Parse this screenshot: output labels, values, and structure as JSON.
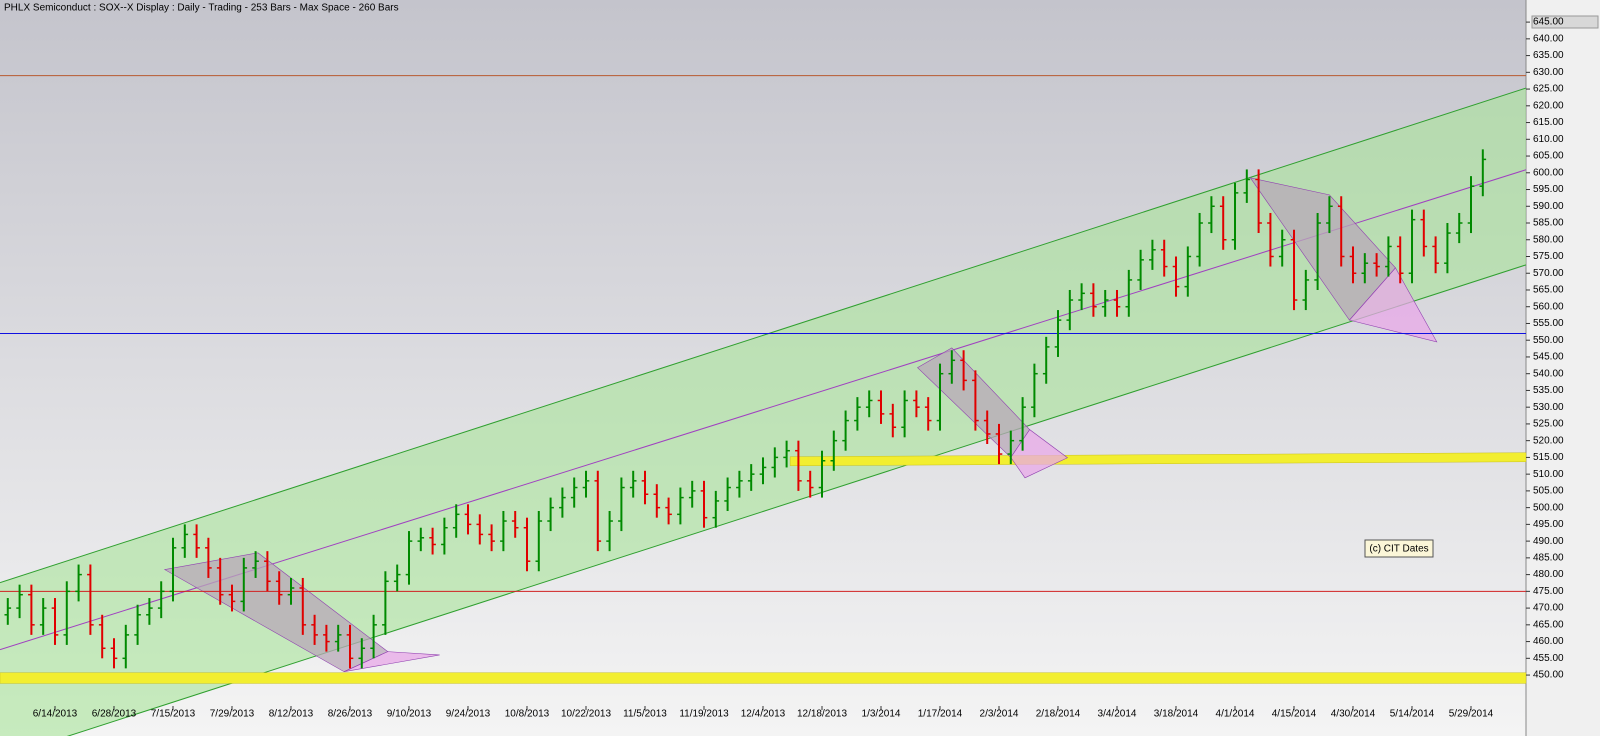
{
  "chart_data": {
    "type": "ohlc",
    "title": "PHLX Semiconduct : SOX--X Display :  Daily  - Trading - 253 Bars -  Max Space - 260 Bars",
    "annotation": "(c) CIT Dates",
    "categories": [
      null,
      null,
      null,
      null,
      "6/14/2013",
      null,
      null,
      null,
      null,
      "6/28/2013",
      null,
      null,
      null,
      null,
      "7/15/2013",
      null,
      null,
      null,
      null,
      "7/29/2013",
      null,
      null,
      null,
      null,
      "8/12/2013",
      null,
      null,
      null,
      null,
      "8/26/2013",
      null,
      null,
      null,
      null,
      "9/10/2013",
      null,
      null,
      null,
      null,
      "9/24/2013",
      null,
      null,
      null,
      null,
      "10/8/2013",
      null,
      null,
      null,
      null,
      "10/22/2013",
      null,
      null,
      null,
      null,
      "11/5/2013",
      null,
      null,
      null,
      null,
      "11/19/2013",
      null,
      null,
      null,
      null,
      "12/4/2013",
      null,
      null,
      null,
      null,
      "12/18/2013",
      null,
      null,
      null,
      null,
      "1/3/2014",
      null,
      null,
      null,
      null,
      "1/17/2014",
      null,
      null,
      null,
      null,
      "2/3/2014",
      null,
      null,
      null,
      null,
      "2/18/2014",
      null,
      null,
      null,
      null,
      "3/4/2014",
      null,
      null,
      null,
      null,
      "3/18/2014",
      null,
      null,
      null,
      null,
      "4/1/2014",
      null,
      null,
      null,
      null,
      "4/15/2014",
      null,
      null,
      null,
      null,
      "4/30/2014",
      null,
      null,
      null,
      null,
      "5/14/2014",
      null,
      null,
      null,
      null,
      "5/29/2014",
      null
    ],
    "open": [
      468,
      470,
      474,
      465,
      470,
      462,
      475,
      480,
      465,
      458,
      455,
      462,
      468,
      470,
      475,
      488,
      492,
      488,
      482,
      474,
      472,
      482,
      484,
      478,
      474,
      476,
      465,
      462,
      460,
      462,
      455,
      458,
      465,
      478,
      480,
      490,
      491,
      489,
      494,
      498,
      495,
      492,
      490,
      496,
      494,
      484,
      496,
      500,
      503,
      506,
      508,
      490,
      496,
      506,
      508,
      504,
      500,
      498,
      503,
      505,
      497,
      502,
      506,
      508,
      510,
      512,
      515,
      517,
      508,
      506,
      514,
      520,
      526,
      530,
      532,
      528,
      524,
      532,
      530,
      526,
      540,
      544,
      538,
      526,
      522,
      516,
      520,
      530,
      540,
      548,
      556,
      562,
      564,
      560,
      562,
      560,
      568,
      574,
      577,
      572,
      566,
      575,
      585,
      590,
      580,
      594,
      598,
      585,
      575,
      580,
      562,
      568,
      585,
      590,
      575,
      570,
      573,
      572,
      578,
      570,
      586,
      578,
      573,
      582,
      585,
      596
    ],
    "high": [
      473,
      477,
      477,
      473,
      473,
      478,
      483,
      483,
      468,
      461,
      465,
      471,
      473,
      478,
      491,
      495,
      495,
      491,
      485,
      477,
      485,
      487,
      487,
      481,
      479,
      479,
      468,
      465,
      465,
      465,
      461,
      468,
      481,
      483,
      493,
      494,
      494,
      497,
      501,
      501,
      498,
      495,
      499,
      499,
      497,
      499,
      503,
      506,
      509,
      511,
      511,
      499,
      509,
      511,
      511,
      507,
      503,
      506,
      508,
      508,
      505,
      509,
      511,
      513,
      515,
      518,
      520,
      520,
      511,
      517,
      523,
      529,
      533,
      535,
      535,
      531,
      535,
      535,
      533,
      543,
      547,
      547,
      541,
      529,
      525,
      523,
      533,
      543,
      551,
      559,
      565,
      567,
      567,
      565,
      565,
      571,
      577,
      580,
      580,
      575,
      578,
      588,
      593,
      593,
      597,
      601,
      601,
      588,
      583,
      583,
      571,
      588,
      593,
      593,
      578,
      576,
      576,
      581,
      581,
      589,
      589,
      581,
      585,
      588,
      599,
      607
    ],
    "low": [
      465,
      467,
      462,
      462,
      459,
      459,
      472,
      462,
      455,
      452,
      452,
      459,
      465,
      467,
      472,
      485,
      485,
      479,
      471,
      469,
      469,
      479,
      475,
      471,
      471,
      462,
      459,
      457,
      457,
      452,
      452,
      455,
      462,
      475,
      477,
      487,
      486,
      486,
      491,
      492,
      489,
      487,
      487,
      491,
      481,
      481,
      493,
      497,
      500,
      503,
      487,
      487,
      493,
      503,
      501,
      497,
      495,
      495,
      500,
      494,
      494,
      499,
      503,
      505,
      507,
      509,
      512,
      505,
      503,
      503,
      511,
      517,
      523,
      527,
      525,
      521,
      521,
      527,
      523,
      523,
      537,
      535,
      523,
      519,
      513,
      513,
      517,
      527,
      537,
      545,
      553,
      559,
      557,
      557,
      557,
      557,
      565,
      571,
      569,
      563,
      563,
      572,
      582,
      577,
      577,
      591,
      582,
      572,
      572,
      559,
      559,
      565,
      582,
      572,
      567,
      567,
      569,
      569,
      567,
      567,
      575,
      570,
      570,
      579,
      582,
      593
    ],
    "close": [
      470,
      474,
      465,
      470,
      462,
      475,
      480,
      465,
      458,
      455,
      462,
      468,
      470,
      475,
      488,
      492,
      488,
      482,
      474,
      472,
      482,
      484,
      478,
      474,
      476,
      465,
      462,
      460,
      462,
      455,
      458,
      465,
      478,
      480,
      490,
      491,
      489,
      494,
      498,
      495,
      492,
      490,
      496,
      494,
      484,
      496,
      500,
      503,
      506,
      508,
      490,
      496,
      506,
      508,
      504,
      500,
      498,
      503,
      505,
      497,
      502,
      506,
      508,
      510,
      512,
      515,
      517,
      508,
      506,
      514,
      520,
      526,
      530,
      532,
      528,
      524,
      532,
      530,
      526,
      540,
      544,
      538,
      526,
      522,
      516,
      520,
      530,
      540,
      548,
      556,
      562,
      564,
      560,
      562,
      560,
      568,
      574,
      577,
      572,
      566,
      575,
      585,
      590,
      580,
      594,
      598,
      585,
      575,
      580,
      562,
      568,
      585,
      590,
      575,
      570,
      573,
      572,
      578,
      570,
      586,
      578,
      573,
      582,
      585,
      596,
      604
    ],
    "up_color": "#008a00",
    "down_color": "#e00000",
    "xlim": [
      -0.66,
      128.66
    ],
    "ylim": [
      431.8,
      651.6
    ],
    "yticks": [
      {
        "value": 450,
        "label": "450.00"
      },
      {
        "value": 455,
        "label": "455.00"
      },
      {
        "value": 460,
        "label": "460.00"
      },
      {
        "value": 465,
        "label": "465.00"
      },
      {
        "value": 470,
        "label": "470.00"
      },
      {
        "value": 475,
        "label": "475.00"
      },
      {
        "value": 480,
        "label": "480.00"
      },
      {
        "value": 485,
        "label": "485.00"
      },
      {
        "value": 490,
        "label": "490.00"
      },
      {
        "value": 495,
        "label": "495.00"
      },
      {
        "value": 500,
        "label": "500.00"
      },
      {
        "value": 505,
        "label": "505.00"
      },
      {
        "value": 510,
        "label": "510.00"
      },
      {
        "value": 515,
        "label": "515.00"
      },
      {
        "value": 520,
        "label": "520.00"
      },
      {
        "value": 525,
        "label": "525.00"
      },
      {
        "value": 530,
        "label": "530.00"
      },
      {
        "value": 535,
        "label": "535.00"
      },
      {
        "value": 540,
        "label": "540.00"
      },
      {
        "value": 545,
        "label": "545.00"
      },
      {
        "value": 550,
        "label": "550.00"
      },
      {
        "value": 555,
        "label": "555.00"
      },
      {
        "value": 560,
        "label": "560.00"
      },
      {
        "value": 565,
        "label": "565.00"
      },
      {
        "value": 570,
        "label": "570.00"
      },
      {
        "value": 575,
        "label": "575.00"
      },
      {
        "value": 580,
        "label": "580.00"
      },
      {
        "value": 585,
        "label": "585.00"
      },
      {
        "value": 590,
        "label": "590.00"
      },
      {
        "value": 595,
        "label": "595.00"
      },
      {
        "value": 600,
        "label": "600.00"
      },
      {
        "value": 605,
        "label": "605.00"
      },
      {
        "value": 610,
        "label": "610.00"
      },
      {
        "value": 615,
        "label": "615.00"
      },
      {
        "value": 620,
        "label": "620.00"
      },
      {
        "value": 625,
        "label": "625.00"
      },
      {
        "value": 630,
        "label": "630.00"
      },
      {
        "value": 635,
        "label": "635.00"
      },
      {
        "value": 640,
        "label": "640.00"
      },
      {
        "value": 645,
        "label": "645.00"
      }
    ],
    "horizontal_lines": [
      {
        "value": 629,
        "color": "#b85a30"
      },
      {
        "value": 552,
        "color": "#1010e0"
      },
      {
        "value": 475,
        "color": "#d02020"
      }
    ],
    "bands": [
      {
        "points": [
          [
            -0.66,
            450.7
          ],
          [
            128.66,
            450.7
          ],
          [
            128.66,
            447.5
          ],
          [
            -0.66,
            447.5
          ]
        ],
        "color": "#f2ee30"
      },
      {
        "points": [
          [
            66.3,
            515.2
          ],
          [
            128.66,
            516.4
          ],
          [
            128.66,
            513.7
          ],
          [
            66.3,
            512.5
          ]
        ],
        "color": "#f2ee30"
      }
    ],
    "channel": {
      "upper": [
        [
          -0.66,
          477.6
        ],
        [
          128.66,
          625.3
        ]
      ],
      "middle": [
        [
          -0.66,
          457.6
        ],
        [
          128.66,
          600.9
        ]
      ],
      "lower": [
        [
          -0.66,
          425.2
        ],
        [
          128.66,
          572.5
        ]
      ],
      "fill": "#a8e49a",
      "line": "#2f9f2f",
      "mid_line": "#a040c0"
    },
    "zones": [
      {
        "points": [
          [
            13.3,
            481.5
          ],
          [
            21.2,
            486.5
          ],
          [
            32.2,
            457
          ],
          [
            28.5,
            451
          ]
        ],
        "color": "#b8a8b8"
      },
      {
        "points": [
          [
            28.5,
            451
          ],
          [
            32.2,
            457
          ],
          [
            36.6,
            456
          ]
        ],
        "color": "#e8a8e8"
      },
      {
        "points": [
          [
            77.1,
            541.8
          ],
          [
            80,
            547.7
          ],
          [
            86.6,
            523.3
          ],
          [
            85,
            515
          ]
        ],
        "color": "#b8a8b8"
      },
      {
        "points": [
          [
            85,
            515
          ],
          [
            86.6,
            523.3
          ],
          [
            89.8,
            514.9
          ],
          [
            86.2,
            508.9
          ]
        ],
        "color": "#e8a8e8"
      },
      {
        "points": [
          [
            105.3,
            598.5
          ],
          [
            112,
            593.4
          ],
          [
            117.6,
            571.6
          ],
          [
            113.7,
            556
          ]
        ],
        "color": "#b8a8b8"
      },
      {
        "points": [
          [
            113.7,
            556
          ],
          [
            117.6,
            571.6
          ],
          [
            121.1,
            549.5
          ]
        ],
        "color": "#e8a8e8"
      }
    ]
  }
}
